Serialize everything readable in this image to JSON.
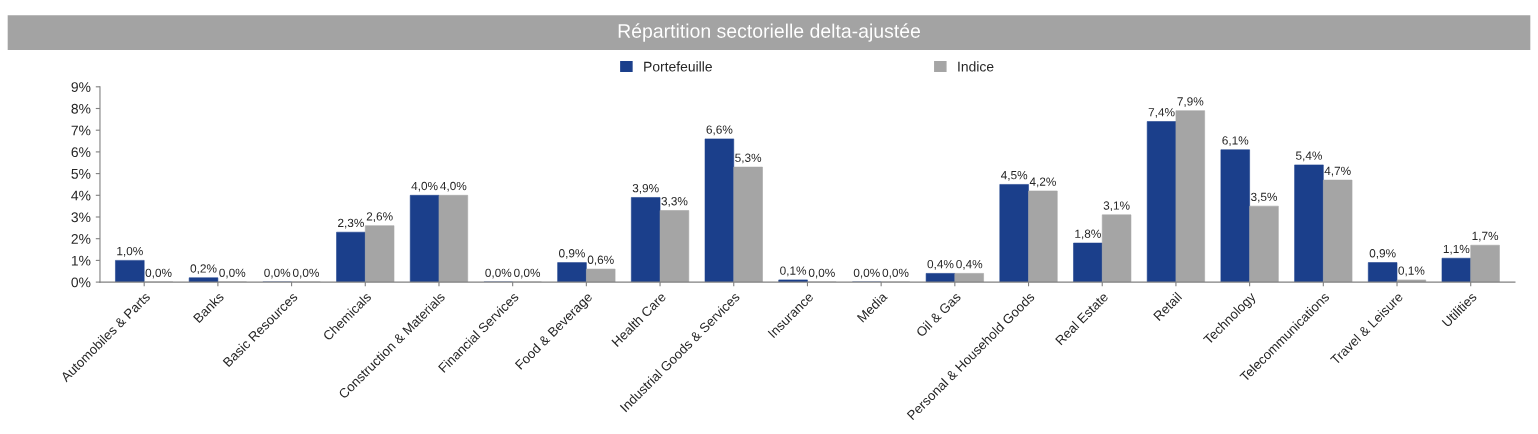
{
  "chart_data": {
    "type": "bar",
    "title": "Répartition sectorielle delta-ajustée",
    "categories": [
      "Automobiles & Parts",
      "Banks",
      "Basic Resources",
      "Chemicals",
      "Construction & Materials",
      "Financial Services",
      "Food & Beverage",
      "Health Care",
      "Industrial Goods & Services",
      "Insurance",
      "Media",
      "Oil & Gas",
      "Personal & Household Goods",
      "Real Estate",
      "Retail",
      "Technology",
      "Telecommunications",
      "Travel & Leisure",
      "Utilities"
    ],
    "series": [
      {
        "name": "Portefeuille",
        "color": "#1b3f8b",
        "values": [
          1.0,
          0.2,
          0.0,
          2.3,
          4.0,
          0.0,
          0.9,
          3.9,
          6.6,
          0.1,
          0.0,
          0.4,
          4.5,
          1.8,
          7.4,
          6.1,
          5.4,
          0.9,
          1.1
        ],
        "value_labels": [
          "1,0%",
          "0,2%",
          "0,0%",
          "2,3%",
          "4,0%",
          "0,0%",
          "0,9%",
          "3,9%",
          "6,6%",
          "0,1%",
          "0,0%",
          "0,4%",
          "4,5%",
          "1,8%",
          "7,4%",
          "6,1%",
          "5,4%",
          "0,9%",
          "1,1%"
        ]
      },
      {
        "name": "Indice",
        "color": "#a5a5a5",
        "values": [
          0.0,
          0.0,
          0.0,
          2.6,
          4.0,
          0.0,
          0.6,
          3.3,
          5.3,
          0.0,
          0.0,
          0.4,
          4.2,
          3.1,
          7.9,
          3.5,
          4.7,
          0.1,
          1.7
        ],
        "value_labels": [
          "0,0%",
          "0,0%",
          "0,0%",
          "2,6%",
          "4,0%",
          "0,0%",
          "0,6%",
          "3,3%",
          "5,3%",
          "0,0%",
          "0,0%",
          "0,4%",
          "4,2%",
          "3,1%",
          "7,9%",
          "3,5%",
          "4,7%",
          "0,1%",
          "1,7%"
        ]
      }
    ],
    "ylim": [
      0,
      9
    ],
    "yticks": [
      {
        "value": 0,
        "label": "0%"
      },
      {
        "value": 1,
        "label": "1%"
      },
      {
        "value": 2,
        "label": "2%"
      },
      {
        "value": 3,
        "label": "3%"
      },
      {
        "value": 4,
        "label": "4%"
      },
      {
        "value": 5,
        "label": "5%"
      },
      {
        "value": 6,
        "label": "6%"
      },
      {
        "value": 7,
        "label": "7%"
      },
      {
        "value": 8,
        "label": "8%"
      },
      {
        "value": 9,
        "label": "9%"
      }
    ],
    "grid": false,
    "legend": "top"
  }
}
